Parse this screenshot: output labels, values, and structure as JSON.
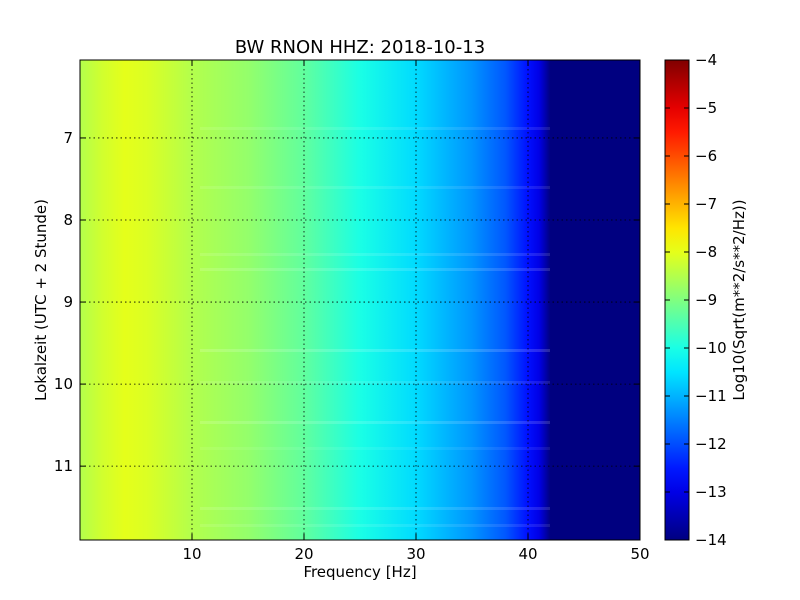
{
  "chart_data": {
    "type": "heatmap",
    "title": "BW RNON HHZ: 2018-10-13",
    "xlabel": "Frequency [Hz]",
    "ylabel": "Lokalzeit (UTC + 2 Stunde)",
    "xlim": [
      0,
      50
    ],
    "ylim": [
      11.9,
      6.05
    ],
    "x_ticks": [
      10,
      20,
      30,
      40,
      50
    ],
    "y_ticks": [
      7,
      8,
      9,
      10,
      11
    ],
    "grid": true,
    "colormap": "jet",
    "colorbar": {
      "label": "Log10(Sqrt(m**2/s**2/Hz))",
      "vmin": -14,
      "vmax": -4,
      "ticks": [
        -4,
        -5,
        -6,
        -7,
        -8,
        -9,
        -10,
        -11,
        -12,
        -13,
        -14
      ],
      "tick_labels": [
        "−4",
        "−5",
        "−6",
        "−7",
        "−8",
        "−9",
        "−10",
        "−11",
        "−12",
        "−13",
        "−14"
      ]
    },
    "frequency_profile": {
      "freq_hz": [
        0,
        2,
        4,
        6,
        8,
        10,
        15,
        20,
        25,
        30,
        35,
        38,
        40,
        41,
        42,
        45,
        50
      ],
      "log10_psd": [
        -8.5,
        -8.2,
        -8.0,
        -8.1,
        -8.3,
        -8.5,
        -8.8,
        -9.3,
        -10.0,
        -10.6,
        -11.3,
        -11.9,
        -12.6,
        -13.0,
        -14.0,
        -14.0,
        -14.0
      ]
    }
  }
}
